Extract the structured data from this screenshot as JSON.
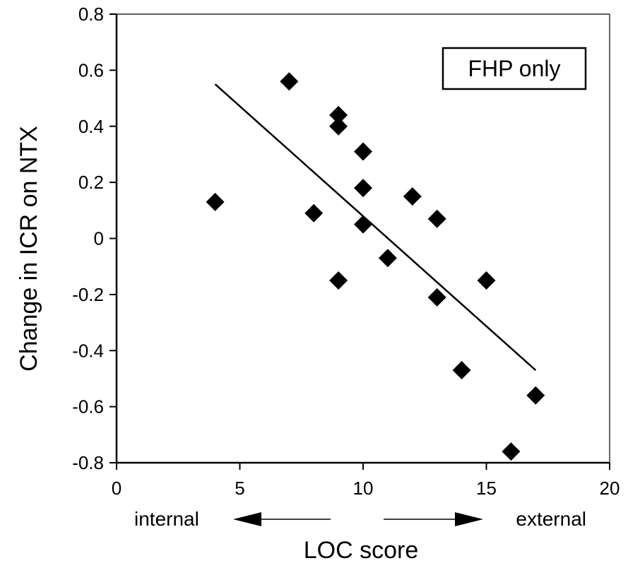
{
  "chart_data": {
    "type": "scatter",
    "legend_box": "FHP only",
    "legend_placement": "top-right",
    "xlabel": "LOC score",
    "ylabel": "Change in ICR on NTX",
    "xlim": [
      0,
      20
    ],
    "ylim": [
      -0.8,
      0.8
    ],
    "x_ticks": [
      0,
      5,
      10,
      15,
      20
    ],
    "y_ticks": [
      -0.8,
      -0.6,
      -0.4,
      -0.2,
      0,
      0.2,
      0.4,
      0.6,
      0.8
    ],
    "x_tick_labels": [
      "0",
      "5",
      "10",
      "15",
      "20"
    ],
    "y_tick_labels": [
      "-0.8",
      "-0.6",
      "-0.4",
      "-0.2",
      "0",
      "0.2",
      "0.4",
      "0.6",
      "0.8"
    ],
    "grid": false,
    "direction_labels": {
      "left": "internal",
      "right": "external"
    },
    "points": [
      {
        "x": 4,
        "y": 0.13
      },
      {
        "x": 7,
        "y": 0.56
      },
      {
        "x": 8,
        "y": 0.09
      },
      {
        "x": 9,
        "y": 0.44
      },
      {
        "x": 9,
        "y": 0.4
      },
      {
        "x": 9,
        "y": -0.15
      },
      {
        "x": 10,
        "y": 0.31
      },
      {
        "x": 10,
        "y": 0.18
      },
      {
        "x": 10,
        "y": 0.05
      },
      {
        "x": 11,
        "y": -0.07
      },
      {
        "x": 12,
        "y": 0.15
      },
      {
        "x": 13,
        "y": 0.07
      },
      {
        "x": 13,
        "y": -0.21
      },
      {
        "x": 14,
        "y": -0.47
      },
      {
        "x": 15,
        "y": -0.15
      },
      {
        "x": 16,
        "y": -0.76
      },
      {
        "x": 17,
        "y": -0.56
      }
    ],
    "trendline": {
      "x": [
        4,
        17
      ],
      "y": [
        0.55,
        -0.47
      ]
    }
  }
}
